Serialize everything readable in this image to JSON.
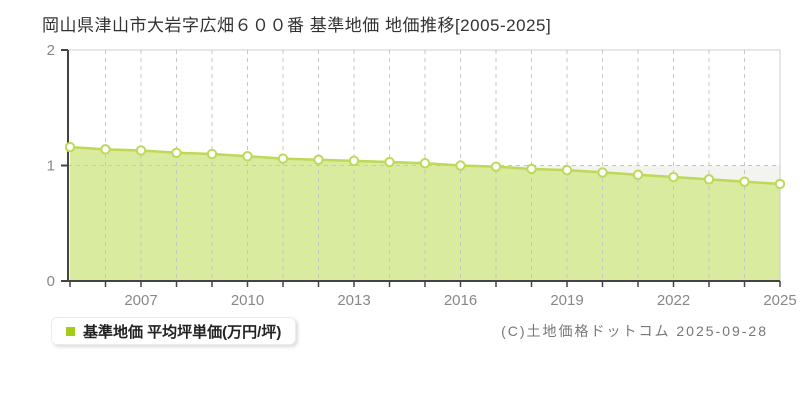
{
  "page": {
    "title": "岡山県津山市大岩字広畑６００番 基準地価 地価推移[2005-2025]"
  },
  "legend": {
    "label": "基準地価 平均坪単価(万円/坪)"
  },
  "footer": {
    "copyright": "(C)土地価格ドットコム 2025-09-28"
  },
  "colors": {
    "area_fill": "#d8eb9e",
    "line": "#bdd957",
    "marker_fill": "#ffffff",
    "band_fill": "#f3f3f0",
    "grid": "#c6c6c6",
    "axis": "#444444",
    "plot_border": "#cccccc",
    "tick_label": "#888888",
    "title_text": "#333333",
    "legend_marker": "#a5cd17"
  },
  "chart_data": {
    "type": "area",
    "title": "岡山県津山市大岩字広畑６００番 基準地価 地価推移[2005-2025]",
    "series_name": "基準地価 平均坪単価(万円/坪)",
    "unit": "万円/坪",
    "x": [
      2005,
      2006,
      2007,
      2008,
      2009,
      2010,
      2011,
      2012,
      2013,
      2014,
      2015,
      2016,
      2017,
      2018,
      2019,
      2020,
      2021,
      2022,
      2023,
      2024,
      2025
    ],
    "values": [
      1.16,
      1.14,
      1.13,
      1.11,
      1.1,
      1.08,
      1.06,
      1.05,
      1.04,
      1.03,
      1.02,
      1.0,
      0.99,
      0.97,
      0.96,
      0.94,
      0.92,
      0.9,
      0.88,
      0.86,
      0.84
    ],
    "ylim": [
      0,
      2
    ],
    "y_ticks": [
      0,
      1,
      2
    ],
    "y_grid_values": [
      1
    ],
    "x_tick_labels": [
      "2007",
      "2010",
      "2013",
      "2016",
      "2019",
      "2022",
      "2025"
    ],
    "band": {
      "from": 0,
      "to": 1
    },
    "grid": "vertical dashed line at every year, horizontal dashed line at 1",
    "legend_position": "bottom-left"
  }
}
